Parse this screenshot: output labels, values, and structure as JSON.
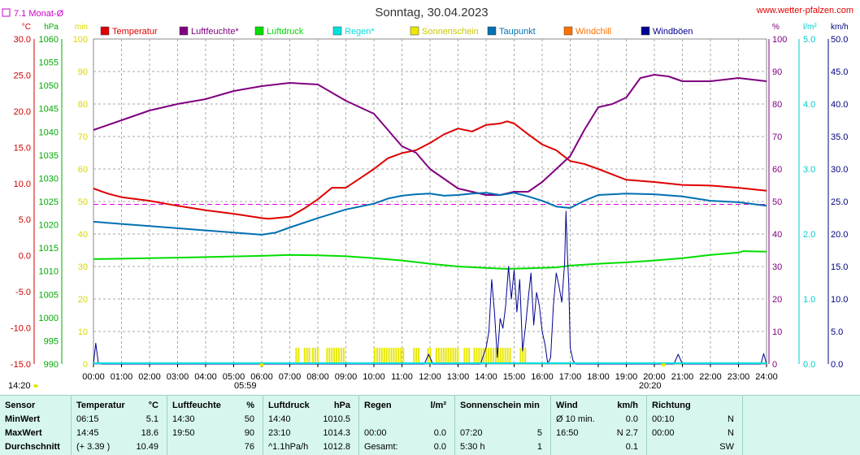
{
  "header": {
    "title": "Sonntag, 30.04.2023",
    "site": "www.wetter-pfalzen.com",
    "avg_label": "7.1 Monat-Ø",
    "marker_left": "05:59",
    "marker_right": "20:20",
    "corner_time": "14:20"
  },
  "chart_data": {
    "type": "line",
    "x_unit_labels": [
      "00:00",
      "01:00",
      "02:00",
      "03:00",
      "04:00",
      "05:00",
      "06:00",
      "07:00",
      "08:00",
      "09:00",
      "10:00",
      "11:00",
      "12:00",
      "13:00",
      "14:00",
      "15:00",
      "16:00",
      "17:00",
      "18:00",
      "19:00",
      "20:00",
      "21:00",
      "22:00",
      "23:00",
      "24:00"
    ],
    "axes": {
      "temp": {
        "unit": "°C",
        "range": [
          -15,
          30
        ],
        "ticks": [
          "30.0",
          "25.0",
          "20.0",
          "15.0",
          "10.0",
          "5.0",
          "0.0",
          "-5.0",
          "-10.0",
          "-15.0"
        ],
        "color": "#cc0000"
      },
      "pressure": {
        "unit": "hPa",
        "range": [
          990,
          1060
        ],
        "ticks": [
          "1060",
          "1055",
          "1050",
          "1045",
          "1040",
          "1035",
          "1030",
          "1025",
          "1020",
          "1015",
          "1010",
          "1005",
          "1000",
          "995",
          "990"
        ],
        "color": "#00aa00"
      },
      "sunshine": {
        "unit": "min",
        "range": [
          0,
          100
        ],
        "ticks": [
          "100",
          "90",
          "80",
          "70",
          "60",
          "50",
          "40",
          "30",
          "20",
          "10",
          "0"
        ],
        "color": "#d8d800"
      },
      "humidity": {
        "unit": "%",
        "range": [
          0,
          100
        ],
        "ticks": [
          "100",
          "90",
          "80",
          "70",
          "60",
          "50",
          "40",
          "30",
          "20",
          "10",
          "0"
        ],
        "color": "#800080"
      },
      "rain": {
        "unit": "l/m²",
        "range": [
          0,
          5
        ],
        "ticks": [
          "5.0",
          "4.0",
          "3.0",
          "2.0",
          "1.0",
          "0.0"
        ],
        "color": "#00cccc"
      },
      "wind": {
        "unit": "km/h",
        "range": [
          0,
          50
        ],
        "ticks": [
          "50.0",
          "45.0",
          "40.0",
          "35.0",
          "30.0",
          "25.0",
          "20.0",
          "15.0",
          "10.0",
          "5.0",
          "0.0"
        ],
        "color": "#000080"
      }
    },
    "legend": [
      {
        "name": "Temperatur",
        "color": "#e00000"
      },
      {
        "name": "Luftfeuchte*",
        "color": "#800080"
      },
      {
        "name": "Luftdruck",
        "color": "#00dd00"
      },
      {
        "name": "Regen*",
        "color": "#00e0e0"
      },
      {
        "name": "Sonnenschein",
        "color": "#e8e800"
      },
      {
        "name": "Taupunkt",
        "color": "#0070b0"
      },
      {
        "name": "Windchill",
        "color": "#ff7000"
      },
      {
        "name": "Windböen",
        "color": "#000090"
      }
    ],
    "monthly_avg_temp": 7.1,
    "series": [
      {
        "name": "Temperatur",
        "axis": "temp",
        "color": "#e00000",
        "points": [
          [
            0,
            9.3
          ],
          [
            0.5,
            8.6
          ],
          [
            1,
            8.1
          ],
          [
            2,
            7.6
          ],
          [
            3,
            6.9
          ],
          [
            4,
            6.3
          ],
          [
            5,
            5.8
          ],
          [
            6,
            5.2
          ],
          [
            6.25,
            5.1
          ],
          [
            7,
            5.4
          ],
          [
            7.5,
            6.5
          ],
          [
            8,
            7.8
          ],
          [
            8.5,
            9.4
          ],
          [
            9,
            9.4
          ],
          [
            9.5,
            10.7
          ],
          [
            10,
            12.0
          ],
          [
            10.5,
            13.5
          ],
          [
            11,
            14.2
          ],
          [
            11.5,
            14.6
          ],
          [
            12,
            15.6
          ],
          [
            12.5,
            16.8
          ],
          [
            13,
            17.6
          ],
          [
            13.5,
            17.2
          ],
          [
            14,
            18.1
          ],
          [
            14.5,
            18.3
          ],
          [
            14.75,
            18.6
          ],
          [
            15,
            18.3
          ],
          [
            15.5,
            16.8
          ],
          [
            16,
            15.4
          ],
          [
            16.5,
            14.6
          ],
          [
            17,
            13.1
          ],
          [
            17.5,
            12.7
          ],
          [
            18,
            12.0
          ],
          [
            19,
            10.5
          ],
          [
            20,
            10.2
          ],
          [
            21,
            9.8
          ],
          [
            22,
            9.7
          ],
          [
            23,
            9.4
          ],
          [
            24,
            9.0
          ]
        ]
      },
      {
        "name": "Luftfeuchte*",
        "axis": "humidity",
        "color": "#800080",
        "points": [
          [
            0,
            72
          ],
          [
            1,
            75
          ],
          [
            2,
            78
          ],
          [
            3,
            80
          ],
          [
            4,
            81.5
          ],
          [
            5,
            84
          ],
          [
            6,
            85.5
          ],
          [
            7,
            86.5
          ],
          [
            8,
            86
          ],
          [
            9,
            81
          ],
          [
            10,
            77
          ],
          [
            10.5,
            72
          ],
          [
            11,
            67
          ],
          [
            11.5,
            65
          ],
          [
            12,
            60
          ],
          [
            12.5,
            57
          ],
          [
            13,
            54
          ],
          [
            13.5,
            53
          ],
          [
            14,
            52
          ],
          [
            14.5,
            52
          ],
          [
            15,
            53
          ],
          [
            15.5,
            53
          ],
          [
            16,
            56
          ],
          [
            16.5,
            60
          ],
          [
            17,
            64
          ],
          [
            17.5,
            72
          ],
          [
            18,
            79
          ],
          [
            18.5,
            80
          ],
          [
            19,
            82
          ],
          [
            19.5,
            88
          ],
          [
            20,
            89
          ],
          [
            20.5,
            88.5
          ],
          [
            21,
            87
          ],
          [
            22,
            87
          ],
          [
            23,
            88
          ],
          [
            24,
            87
          ]
        ]
      },
      {
        "name": "Luftdruck",
        "axis": "pressure",
        "color": "#00dd00",
        "points": [
          [
            0,
            1012.6
          ],
          [
            3,
            1012.9
          ],
          [
            6,
            1013.3
          ],
          [
            7,
            1013.5
          ],
          [
            8,
            1013.4
          ],
          [
            9,
            1013.2
          ],
          [
            10,
            1012.8
          ],
          [
            11,
            1012.3
          ],
          [
            12,
            1011.6
          ],
          [
            13,
            1011.0
          ],
          [
            14,
            1010.7
          ],
          [
            14.67,
            1010.5
          ],
          [
            15.5,
            1010.6
          ],
          [
            16.5,
            1010.8
          ],
          [
            17,
            1011.2
          ],
          [
            18,
            1011.6
          ],
          [
            19,
            1011.9
          ],
          [
            20,
            1012.3
          ],
          [
            21,
            1012.8
          ],
          [
            22,
            1013.5
          ],
          [
            23,
            1014.0
          ],
          [
            23.17,
            1014.3
          ],
          [
            24,
            1014.2
          ]
        ]
      },
      {
        "name": "Taupunkt",
        "axis": "temp",
        "color": "#0070b0",
        "points": [
          [
            0,
            4.7
          ],
          [
            1,
            4.4
          ],
          [
            2,
            4.1
          ],
          [
            3,
            3.8
          ],
          [
            4,
            3.5
          ],
          [
            5,
            3.2
          ],
          [
            6,
            2.9
          ],
          [
            6.5,
            3.2
          ],
          [
            7,
            3.9
          ],
          [
            8,
            5.2
          ],
          [
            9,
            6.4
          ],
          [
            10,
            7.2
          ],
          [
            10.5,
            7.9
          ],
          [
            11,
            8.3
          ],
          [
            11.5,
            8.5
          ],
          [
            12,
            8.6
          ],
          [
            12.5,
            8.3
          ],
          [
            13,
            8.4
          ],
          [
            13.5,
            8.6
          ],
          [
            14,
            8.7
          ],
          [
            14.5,
            8.4
          ],
          [
            15,
            8.7
          ],
          [
            15.5,
            8.2
          ],
          [
            16,
            7.6
          ],
          [
            16.5,
            6.8
          ],
          [
            17,
            6.6
          ],
          [
            17.5,
            7.6
          ],
          [
            18,
            8.4
          ],
          [
            19,
            8.6
          ],
          [
            20,
            8.5
          ],
          [
            21,
            8.2
          ],
          [
            22,
            7.6
          ],
          [
            23,
            7.4
          ],
          [
            24,
            6.9
          ]
        ]
      },
      {
        "name": "Windböen",
        "axis": "wind",
        "color": "#000090",
        "points": [
          [
            0,
            0
          ],
          [
            0.08,
            3.2
          ],
          [
            0.17,
            0.2
          ],
          [
            0.3,
            0
          ],
          [
            11.8,
            0
          ],
          [
            11.95,
            1.5
          ],
          [
            12.1,
            0
          ],
          [
            13.8,
            0
          ],
          [
            14.0,
            2.5
          ],
          [
            14.1,
            5.0
          ],
          [
            14.2,
            13.0
          ],
          [
            14.3,
            8.0
          ],
          [
            14.4,
            1.0
          ],
          [
            14.5,
            7.0
          ],
          [
            14.6,
            5.5
          ],
          [
            14.7,
            9.0
          ],
          [
            14.8,
            15.0
          ],
          [
            14.9,
            10.0
          ],
          [
            15.0,
            14.5
          ],
          [
            15.1,
            8.0
          ],
          [
            15.2,
            13.0
          ],
          [
            15.3,
            2.0
          ],
          [
            15.4,
            5.5
          ],
          [
            15.5,
            10.0
          ],
          [
            15.6,
            14.0
          ],
          [
            15.7,
            6.0
          ],
          [
            15.8,
            11.0
          ],
          [
            15.9,
            9.0
          ],
          [
            16.0,
            5.0
          ],
          [
            16.1,
            3.0
          ],
          [
            16.2,
            0.0
          ],
          [
            16.3,
            1.0
          ],
          [
            16.4,
            9.0
          ],
          [
            16.5,
            14.0
          ],
          [
            16.6,
            12.0
          ],
          [
            16.7,
            9.5
          ],
          [
            16.8,
            15.5
          ],
          [
            16.85,
            23.5
          ],
          [
            16.9,
            17.0
          ],
          [
            16.95,
            12.0
          ],
          [
            17.0,
            2.5
          ],
          [
            17.1,
            0.5
          ],
          [
            17.2,
            0
          ],
          [
            20.7,
            0
          ],
          [
            20.85,
            1.5
          ],
          [
            21.0,
            0
          ],
          [
            23.8,
            0
          ],
          [
            23.9,
            1.6
          ],
          [
            24,
            0
          ]
        ]
      }
    ],
    "sunshine_hours": [
      [
        7.2,
        7.3
      ],
      [
        7.5,
        7.7
      ],
      [
        7.8,
        8.0
      ],
      [
        8.3,
        8.9
      ],
      [
        10.0,
        11.1
      ],
      [
        11.4,
        11.6
      ],
      [
        11.9,
        12.0
      ],
      [
        12.2,
        13.0
      ],
      [
        13.2,
        13.4
      ],
      [
        13.55,
        14.9
      ],
      [
        15.2,
        15.4
      ]
    ]
  },
  "stats": {
    "cols": [
      {
        "h1": "Sensor",
        "rows": [
          "MinWert",
          "MaxWert",
          "Durchschnitt"
        ]
      },
      {
        "h1": "Temperatur",
        "h2": "°C",
        "rows": [
          [
            "06:15",
            "5.1"
          ],
          [
            "14:45",
            "18.6"
          ],
          [
            "(+ 3.39 )",
            "10.49"
          ]
        ]
      },
      {
        "h1": "Luftfeuchte",
        "h2": "%",
        "rows": [
          [
            "14:30",
            "50"
          ],
          [
            "19:50",
            "90"
          ],
          [
            "",
            "76"
          ]
        ]
      },
      {
        "h1": "Luftdruck",
        "h2": "hPa",
        "rows": [
          [
            "14:40",
            "1010.5"
          ],
          [
            "23:10",
            "1014.3"
          ],
          [
            "^1.1hPa/h",
            "1012.8"
          ]
        ]
      },
      {
        "h1": "Regen",
        "h2": "l/m²",
        "rows": [
          [
            "",
            ""
          ],
          [
            "00:00",
            "0.0"
          ],
          [
            "Gesamt:",
            "0.0"
          ]
        ]
      },
      {
        "h1": "Sonnenschein min",
        "h2": "",
        "rows": [
          [
            "",
            ""
          ],
          [
            "07:20",
            "5"
          ],
          [
            "5:30 h",
            "1"
          ]
        ]
      },
      {
        "h1": "Wind",
        "h2": "km/h",
        "rows": [
          [
            "Ø 10 min.",
            "0.0"
          ],
          [
            "16:50",
            "N 2.7"
          ],
          [
            "",
            "0.1"
          ]
        ]
      },
      {
        "h1": "Richtung",
        "h2": "",
        "rows": [
          [
            "00:10",
            "N"
          ],
          [
            "00:00",
            "N"
          ],
          [
            "",
            "SW"
          ]
        ]
      }
    ]
  }
}
